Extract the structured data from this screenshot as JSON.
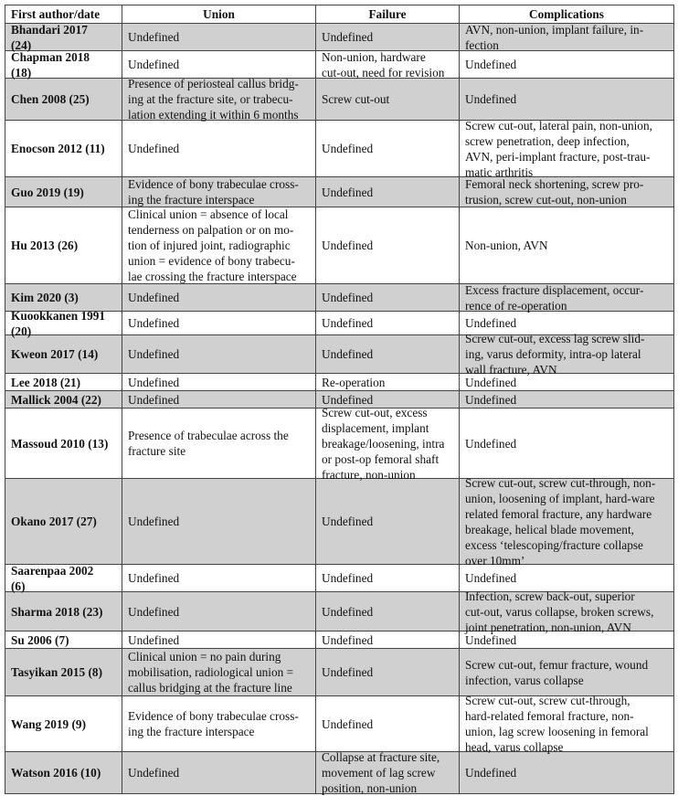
{
  "headers": [
    "First author/date",
    "Union",
    "Failure",
    "Complications"
  ],
  "rows": [
    {
      "author": [
        "Bhandari 2017",
        "(24)"
      ],
      "union": [
        "Undefined"
      ],
      "failure": [
        "Undefined"
      ],
      "complications": [
        "AVN, non-union, implant failure, in-",
        "fection"
      ]
    },
    {
      "author": [
        "Chapman 2018",
        "(18)"
      ],
      "union": [
        "Undefined"
      ],
      "failure": [
        "Non-union, hardware",
        "cut-out, need for revision"
      ],
      "complications": [
        "Undefined"
      ]
    },
    {
      "author": [
        "Chen 2008 (25)"
      ],
      "union": [
        "Presence of periosteal callus bridg-",
        "ing at the fracture site, or trabecu-",
        "lation extending it within 6 months"
      ],
      "failure": [
        "Screw cut-out"
      ],
      "complications": [
        "Undefined"
      ]
    },
    {
      "author": [
        "Enocson 2012 (11)"
      ],
      "union": [
        "Undefined"
      ],
      "failure": [
        "Undefined"
      ],
      "complications": [
        "Screw cut-out, lateral pain, non-union,",
        "screw penetration, deep infection,",
        "AVN, peri-implant fracture, post-trau-",
        "matic arthritis"
      ]
    },
    {
      "author": [
        "Guo 2019 (19)"
      ],
      "union": [
        "Evidence of bony trabeculae cross-",
        "ing the fracture interspace"
      ],
      "failure": [
        "Undefined"
      ],
      "complications": [
        "Femoral neck shortening, screw pro-",
        "trusion, screw cut-out, non-union"
      ]
    },
    {
      "author": [
        "Hu 2013 (26)"
      ],
      "union": [
        "Clinical union = absence of local",
        "tenderness on palpation or on mo-",
        "tion of injured joint, radiographic",
        "union = evidence of bony trabecu-",
        "lae crossing the fracture interspace"
      ],
      "failure": [
        "Undefined"
      ],
      "complications": [
        "Non-union, AVN"
      ]
    },
    {
      "author": [
        "Kim 2020 (3)"
      ],
      "union": [
        "Undefined"
      ],
      "failure": [
        "Undefined"
      ],
      "complications": [
        "Excess fracture displacement, occur-",
        "rence of re-operation"
      ]
    },
    {
      "author": [
        "Kuookkanen 1991",
        "(20)"
      ],
      "union": [
        "Undefined"
      ],
      "failure": [
        "Undefined"
      ],
      "complications": [
        "Undefined"
      ]
    },
    {
      "author": [
        "Kweon 2017 (14)"
      ],
      "union": [
        "Undefined"
      ],
      "failure": [
        "Undefined"
      ],
      "complications": [
        "Screw cut-out, excess lag screw slid-",
        "ing, varus deformity, intra-op lateral",
        "wall fracture, AVN"
      ]
    },
    {
      "author": [
        "Lee 2018 (21)"
      ],
      "union": [
        "Undefined"
      ],
      "failure": [
        "Re-operation"
      ],
      "complications": [
        "Undefined"
      ]
    },
    {
      "author": [
        "Mallick 2004 (22)"
      ],
      "union": [
        "Undefined"
      ],
      "failure": [
        "Undefined"
      ],
      "complications": [
        "Undefined"
      ]
    },
    {
      "author": [
        "Massoud 2010 (13)"
      ],
      "union": [
        "Presence of trabeculae across the",
        "fracture site"
      ],
      "failure": [
        "Screw cut-out, excess",
        "displacement, implant",
        "breakage/loosening, intra",
        "or post-op femoral shaft",
        "fracture, non-union"
      ],
      "complications": [
        "Undefined"
      ]
    },
    {
      "author": [
        "Okano 2017 (27)"
      ],
      "union": [
        "Undefined"
      ],
      "failure": [
        "Undefined"
      ],
      "complications": [
        "Screw cut-out, screw cut-through, non-",
        "union, loosening of implant, hard-ware",
        "related femoral fracture, any hardware",
        "breakage, helical blade movement,",
        "excess ‘telescoping/fracture collapse",
        "over 10mm’"
      ]
    },
    {
      "author": [
        "Saarenpaa 2002",
        "(6)"
      ],
      "union": [
        "Undefined"
      ],
      "failure": [
        "Undefined"
      ],
      "complications": [
        "Undefined"
      ]
    },
    {
      "author": [
        "Sharma 2018 (23)"
      ],
      "union": [
        "Undefined"
      ],
      "failure": [
        "Undefined"
      ],
      "complications": [
        "Infection, screw back-out, superior",
        "cut-out, varus collapse, broken screws,",
        "joint penetration, non-union, AVN"
      ]
    },
    {
      "author": [
        "Su 2006 (7)"
      ],
      "union": [
        "Undefined"
      ],
      "failure": [
        "Undefined"
      ],
      "complications": [
        "Undefined"
      ]
    },
    {
      "author": [
        "Tasyikan 2015 (8)"
      ],
      "union": [
        "Clinical union = no pain during",
        "mobilisation, radiological union =",
        "callus bridging at the fracture line"
      ],
      "failure": [
        "Undefined"
      ],
      "complications": [
        "Screw cut-out, femur fracture, wound",
        "infection, varus collapse"
      ]
    },
    {
      "author": [
        "Wang 2019 (9)"
      ],
      "union": [
        "Evidence of bony trabeculae cross-",
        "ing the fracture interspace"
      ],
      "failure": [
        "Undefined"
      ],
      "complications": [
        "Screw cut-out, screw cut-through,",
        "hard-related femoral fracture, non-",
        "union, lag screw loosening in femoral",
        "head, varus collapse"
      ]
    },
    {
      "author": [
        "Watson 2016 (10)"
      ],
      "union": [
        "Undefined"
      ],
      "failure": [
        "Collapse at fracture site,",
        "movement of lag screw",
        "position, non-union"
      ],
      "complications": [
        "Undefined"
      ]
    }
  ],
  "colors": {
    "shaded_row": "#d0d0d0",
    "border": "#444444"
  }
}
